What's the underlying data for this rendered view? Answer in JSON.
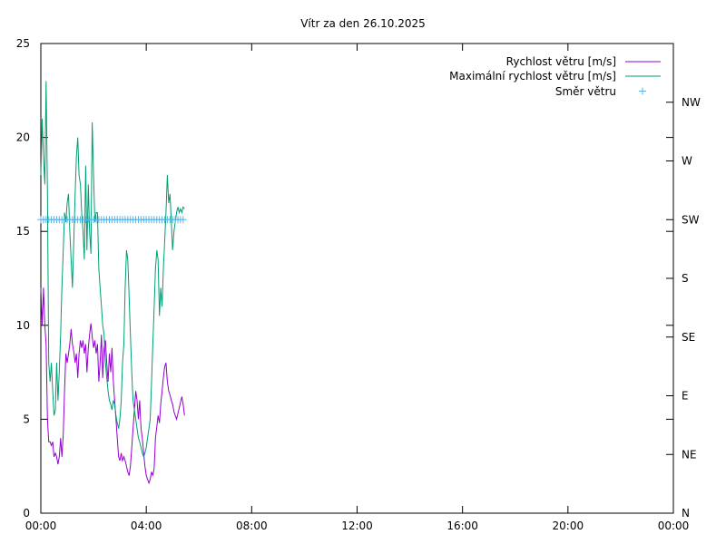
{
  "chart_data": {
    "type": "line",
    "title": "Vítr za den 26.10.2025",
    "xlim": [
      "00:00",
      "24:00"
    ],
    "x_ticks": [
      "00:00",
      "04:00",
      "08:00",
      "12:00",
      "16:00",
      "20:00",
      "00:00"
    ],
    "ylim": [
      0,
      25
    ],
    "y_ticks": [
      0,
      5,
      10,
      15,
      20,
      25
    ],
    "y2_ticks": [
      "N",
      "NE",
      "E",
      "SE",
      "S",
      "SW",
      "W",
      "NW"
    ],
    "grid": false,
    "legend_position": "top-right",
    "series": [
      {
        "name": "Rychlost větru [m/s]",
        "axis": "y",
        "color": "#9400d3",
        "style": "line",
        "points": [
          [
            "00:00",
            12.0
          ],
          [
            "00:03",
            10.0
          ],
          [
            "00:06",
            12.0
          ],
          [
            "00:09",
            10.0
          ],
          [
            "00:12",
            9.0
          ],
          [
            "00:15",
            5.0
          ],
          [
            "00:18",
            3.8
          ],
          [
            "00:21",
            3.8
          ],
          [
            "00:24",
            3.6
          ],
          [
            "00:27",
            3.8
          ],
          [
            "00:30",
            3.0
          ],
          [
            "00:33",
            3.2
          ],
          [
            "00:36",
            3.0
          ],
          [
            "00:39",
            2.6
          ],
          [
            "00:42",
            3.0
          ],
          [
            "00:45",
            4.0
          ],
          [
            "00:48",
            3.0
          ],
          [
            "00:51",
            4.2
          ],
          [
            "00:54",
            6.5
          ],
          [
            "00:57",
            8.5
          ],
          [
            "01:00",
            8.0
          ],
          [
            "01:03",
            8.5
          ],
          [
            "01:06",
            9.0
          ],
          [
            "01:09",
            9.8
          ],
          [
            "01:12",
            9.0
          ],
          [
            "01:15",
            8.6
          ],
          [
            "01:18",
            8.0
          ],
          [
            "01:21",
            8.5
          ],
          [
            "01:24",
            7.2
          ],
          [
            "01:27",
            8.5
          ],
          [
            "01:30",
            9.2
          ],
          [
            "01:33",
            8.8
          ],
          [
            "01:36",
            9.2
          ],
          [
            "01:39",
            8.5
          ],
          [
            "01:42",
            9.0
          ],
          [
            "01:45",
            7.5
          ],
          [
            "01:48",
            8.8
          ],
          [
            "01:51",
            9.5
          ],
          [
            "01:54",
            10.1
          ],
          [
            "01:57",
            9.4
          ],
          [
            "02:00",
            8.8
          ],
          [
            "02:03",
            9.2
          ],
          [
            "02:06",
            8.5
          ],
          [
            "02:09",
            9.0
          ],
          [
            "02:12",
            7.0
          ],
          [
            "02:15",
            8.0
          ],
          [
            "02:18",
            9.5
          ],
          [
            "02:21",
            7.2
          ],
          [
            "02:24",
            8.8
          ],
          [
            "02:27",
            9.2
          ],
          [
            "02:30",
            8.0
          ],
          [
            "02:33",
            7.0
          ],
          [
            "02:36",
            8.5
          ],
          [
            "02:39",
            7.5
          ],
          [
            "02:42",
            8.8
          ],
          [
            "02:45",
            7.0
          ],
          [
            "02:48",
            6.0
          ],
          [
            "02:51",
            5.0
          ],
          [
            "02:54",
            4.0
          ],
          [
            "02:57",
            3.0
          ],
          [
            "03:00",
            2.8
          ],
          [
            "03:03",
            3.2
          ],
          [
            "03:06",
            2.8
          ],
          [
            "03:09",
            3.0
          ],
          [
            "03:12",
            2.8
          ],
          [
            "03:15",
            2.5
          ],
          [
            "03:18",
            2.2
          ],
          [
            "03:21",
            2.0
          ],
          [
            "03:24",
            2.5
          ],
          [
            "03:27",
            3.5
          ],
          [
            "03:30",
            4.5
          ],
          [
            "03:33",
            5.5
          ],
          [
            "03:36",
            6.5
          ],
          [
            "03:39",
            6.0
          ],
          [
            "03:42",
            5.0
          ],
          [
            "03:45",
            6.0
          ],
          [
            "03:48",
            4.5
          ],
          [
            "03:51",
            4.0
          ],
          [
            "03:54",
            3.2
          ],
          [
            "03:57",
            2.5
          ],
          [
            "04:00",
            2.0
          ],
          [
            "04:03",
            1.8
          ],
          [
            "04:06",
            1.6
          ],
          [
            "04:09",
            1.8
          ],
          [
            "04:12",
            2.2
          ],
          [
            "04:15",
            2.0
          ],
          [
            "04:18",
            2.4
          ],
          [
            "04:21",
            4.0
          ],
          [
            "04:24",
            4.6
          ],
          [
            "04:27",
            5.2
          ],
          [
            "04:30",
            4.8
          ],
          [
            "04:33",
            5.8
          ],
          [
            "04:36",
            6.5
          ],
          [
            "04:39",
            7.2
          ],
          [
            "04:42",
            7.8
          ],
          [
            "04:45",
            8.0
          ],
          [
            "04:48",
            7.0
          ],
          [
            "04:51",
            6.5
          ],
          [
            "04:54",
            6.3
          ],
          [
            "04:57",
            6.0
          ],
          [
            "05:00",
            5.8
          ],
          [
            "05:03",
            5.4
          ],
          [
            "05:06",
            5.2
          ],
          [
            "05:09",
            5.0
          ],
          [
            "05:12",
            5.3
          ],
          [
            "05:15",
            5.6
          ],
          [
            "05:18",
            5.9
          ],
          [
            "05:21",
            6.2
          ],
          [
            "05:24",
            5.8
          ],
          [
            "05:27",
            5.2
          ]
        ]
      },
      {
        "name": "Maximální rychlost větru [m/s]",
        "axis": "y",
        "color": "#009e73",
        "style": "line",
        "points": [
          [
            "00:00",
            18.0
          ],
          [
            "00:03",
            21.0
          ],
          [
            "00:06",
            19.0
          ],
          [
            "00:09",
            17.5
          ],
          [
            "00:12",
            23.0
          ],
          [
            "00:15",
            17.0
          ],
          [
            "00:18",
            8.0
          ],
          [
            "00:21",
            7.0
          ],
          [
            "00:24",
            8.0
          ],
          [
            "00:27",
            6.5
          ],
          [
            "00:30",
            5.2
          ],
          [
            "00:33",
            5.5
          ],
          [
            "00:36",
            8.0
          ],
          [
            "00:39",
            6.0
          ],
          [
            "00:42",
            7.5
          ],
          [
            "00:45",
            9.5
          ],
          [
            "00:48",
            12.0
          ],
          [
            "00:51",
            14.0
          ],
          [
            "00:54",
            16.0
          ],
          [
            "00:57",
            15.5
          ],
          [
            "01:00",
            16.5
          ],
          [
            "01:03",
            17.0
          ],
          [
            "01:06",
            15.0
          ],
          [
            "01:09",
            13.5
          ],
          [
            "01:12",
            12.0
          ],
          [
            "01:15",
            14.5
          ],
          [
            "01:18",
            17.0
          ],
          [
            "01:21",
            19.0
          ],
          [
            "01:24",
            20.0
          ],
          [
            "01:27",
            18.0
          ],
          [
            "01:30",
            17.5
          ],
          [
            "01:33",
            16.0
          ],
          [
            "01:36",
            15.0
          ],
          [
            "01:39",
            13.5
          ],
          [
            "01:42",
            18.5
          ],
          [
            "01:45",
            14.0
          ],
          [
            "01:48",
            17.5
          ],
          [
            "01:51",
            15.0
          ],
          [
            "01:54",
            13.8
          ],
          [
            "01:57",
            20.8
          ],
          [
            "02:00",
            18.0
          ],
          [
            "02:03",
            15.5
          ],
          [
            "02:06",
            16.0
          ],
          [
            "02:09",
            16.0
          ],
          [
            "02:12",
            13.0
          ],
          [
            "02:15",
            12.0
          ],
          [
            "02:18",
            11.0
          ],
          [
            "02:21",
            10.0
          ],
          [
            "02:24",
            9.5
          ],
          [
            "02:27",
            8.0
          ],
          [
            "02:30",
            7.2
          ],
          [
            "02:33",
            6.5
          ],
          [
            "02:36",
            6.0
          ],
          [
            "02:39",
            5.8
          ],
          [
            "02:42",
            5.5
          ],
          [
            "02:45",
            6.0
          ],
          [
            "02:48",
            5.8
          ],
          [
            "02:51",
            5.2
          ],
          [
            "02:54",
            4.8
          ],
          [
            "02:57",
            4.5
          ],
          [
            "03:00",
            5.0
          ],
          [
            "03:03",
            6.0
          ],
          [
            "03:06",
            8.0
          ],
          [
            "03:09",
            9.0
          ],
          [
            "03:12",
            12.0
          ],
          [
            "03:15",
            14.0
          ],
          [
            "03:18",
            13.5
          ],
          [
            "03:21",
            11.5
          ],
          [
            "03:24",
            9.5
          ],
          [
            "03:27",
            7.5
          ],
          [
            "03:30",
            6.0
          ],
          [
            "03:33",
            5.5
          ],
          [
            "03:36",
            5.0
          ],
          [
            "03:39",
            4.5
          ],
          [
            "03:42",
            4.0
          ],
          [
            "03:45",
            3.8
          ],
          [
            "03:48",
            3.5
          ],
          [
            "03:51",
            3.2
          ],
          [
            "03:54",
            3.0
          ],
          [
            "03:57",
            3.2
          ],
          [
            "04:00",
            3.5
          ],
          [
            "04:03",
            4.0
          ],
          [
            "04:06",
            4.5
          ],
          [
            "04:09",
            5.0
          ],
          [
            "04:12",
            7.0
          ],
          [
            "04:15",
            9.0
          ],
          [
            "04:18",
            11.0
          ],
          [
            "04:21",
            13.0
          ],
          [
            "04:24",
            14.0
          ],
          [
            "04:27",
            13.5
          ],
          [
            "04:30",
            10.5
          ],
          [
            "04:33",
            12.0
          ],
          [
            "04:36",
            11.0
          ],
          [
            "04:39",
            13.0
          ],
          [
            "04:42",
            14.5
          ],
          [
            "04:45",
            16.0
          ],
          [
            "04:48",
            18.0
          ],
          [
            "04:51",
            16.5
          ],
          [
            "04:54",
            17.0
          ],
          [
            "04:57",
            15.5
          ],
          [
            "05:00",
            14.0
          ],
          [
            "05:03",
            15.0
          ],
          [
            "05:06",
            15.5
          ],
          [
            "05:09",
            16.0
          ],
          [
            "05:12",
            16.3
          ],
          [
            "05:15",
            16.0
          ],
          [
            "05:18",
            16.2
          ],
          [
            "05:21",
            16.0
          ],
          [
            "05:24",
            16.3
          ],
          [
            "05:27",
            16.2
          ]
        ]
      },
      {
        "name": "Směr větru",
        "axis": "y2",
        "color": "#56b4e9",
        "style": "points",
        "marker": "+",
        "direction_labels": [
          "N",
          "NE",
          "E",
          "SE",
          "S",
          "SW",
          "W",
          "NW"
        ],
        "x": [
          "00:00",
          "00:06",
          "00:12",
          "00:18",
          "00:24",
          "00:30",
          "00:36",
          "00:42",
          "00:48",
          "00:54",
          "01:00",
          "01:06",
          "01:12",
          "01:18",
          "01:24",
          "01:30",
          "01:36",
          "01:42",
          "01:48",
          "01:54",
          "02:00",
          "02:06",
          "02:12",
          "02:18",
          "02:24",
          "02:30",
          "02:36",
          "02:42",
          "02:48",
          "02:54",
          "03:00",
          "03:06",
          "03:12",
          "03:18",
          "03:24",
          "03:30",
          "03:36",
          "03:42",
          "03:48",
          "03:54",
          "04:00",
          "04:06",
          "04:12",
          "04:18",
          "04:24",
          "04:30",
          "04:36",
          "04:42",
          "04:48",
          "04:54",
          "05:00",
          "05:06",
          "05:12",
          "05:18",
          "05:24"
        ],
        "values": [
          5,
          5,
          5,
          5,
          5,
          5,
          5,
          5,
          5,
          5,
          5,
          5,
          5,
          5,
          5,
          5,
          5,
          5,
          5,
          5,
          5,
          5,
          5,
          5,
          5,
          5,
          5,
          5,
          5,
          5,
          5,
          5,
          5,
          5,
          5,
          5,
          5,
          5,
          5,
          5,
          5,
          5,
          5,
          5,
          5,
          5,
          5,
          5,
          5,
          5,
          5,
          5,
          5,
          5,
          5
        ]
      }
    ]
  }
}
